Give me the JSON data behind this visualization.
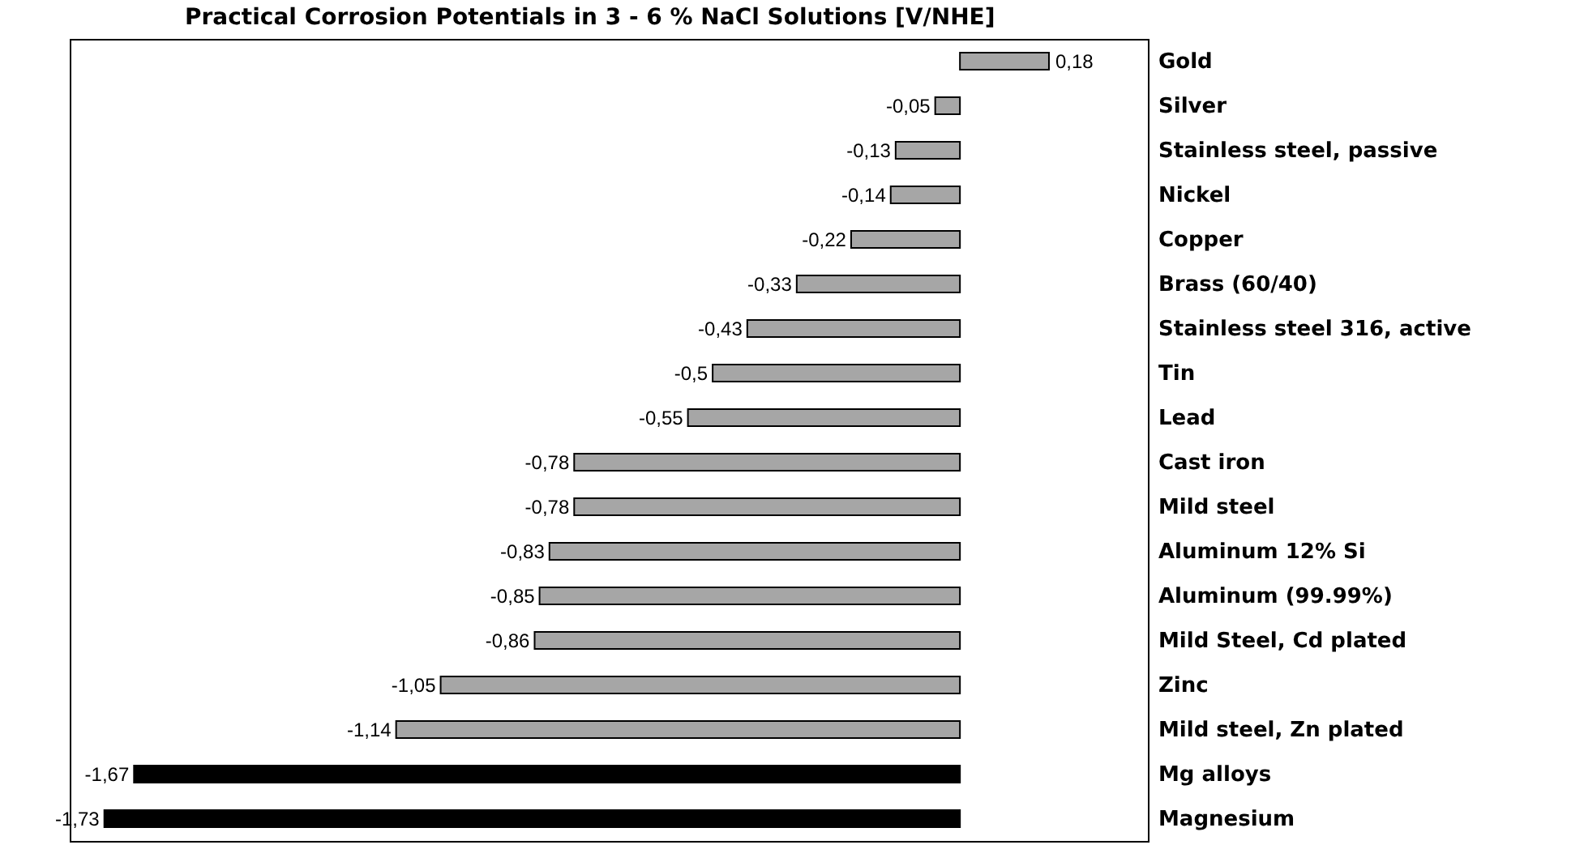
{
  "chart_data": {
    "type": "bar",
    "orientation": "horizontal",
    "title": "Practical Corrosion Potentials in 3 - 6 % NaCl Solutions [V/NHE]",
    "categories": [
      "Gold",
      "Silver",
      "Stainless steel, passive",
      "Nickel",
      "Copper",
      "Brass (60/40)",
      "Stainless steel 316, active",
      "Tin",
      "Lead",
      "Cast iron",
      "Mild steel",
      "Aluminum 12% Si",
      "Aluminum (99.99%)",
      "Mild Steel, Cd plated",
      "Zinc",
      "Mild steel, Zn plated",
      "Mg alloys",
      "Magnesium"
    ],
    "values": [
      0.18,
      -0.05,
      -0.13,
      -0.14,
      -0.22,
      -0.33,
      -0.43,
      -0.5,
      -0.55,
      -0.78,
      -0.78,
      -0.83,
      -0.85,
      -0.86,
      -1.05,
      -1.14,
      -1.67,
      -1.73
    ],
    "value_labels": [
      "0,18",
      "-0,05",
      "-0,13",
      "-0,14",
      "-0,22",
      "-0,33",
      "-0,43",
      "-0,5",
      "-0,55",
      "-0,78",
      "-0,78",
      "-0,83",
      "-0,85",
      "-0,86",
      "-1,05",
      "-1,14",
      "-1,67",
      "-1,73"
    ],
    "colors": [
      "#a6a6a6",
      "#a6a6a6",
      "#a6a6a6",
      "#a6a6a6",
      "#a6a6a6",
      "#a6a6a6",
      "#a6a6a6",
      "#a6a6a6",
      "#a6a6a6",
      "#a6a6a6",
      "#a6a6a6",
      "#a6a6a6",
      "#a6a6a6",
      "#a6a6a6",
      "#a6a6a6",
      "#a6a6a6",
      "#000000",
      "#000000"
    ],
    "xlim": [
      -1.8,
      0.38
    ],
    "tick_labels": "y",
    "legend": false
  }
}
